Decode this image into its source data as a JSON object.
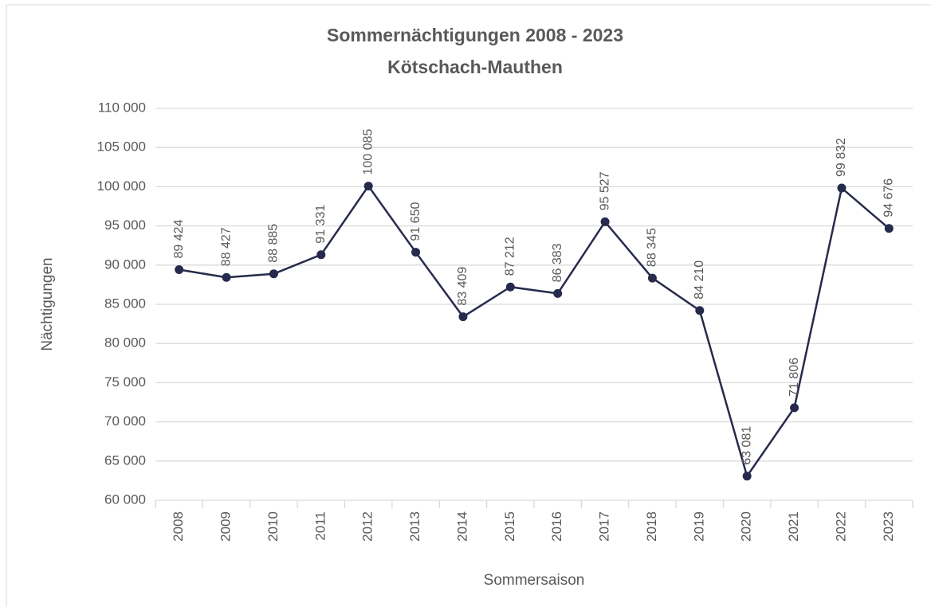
{
  "chart_data": {
    "type": "line",
    "title": "Sommernächtigungen 2008 - 2023",
    "subtitle": "Kötschach-Mauthen",
    "x_label": "Sommersaison",
    "y_label": "Nächtigungen",
    "categories": [
      "2008",
      "2009",
      "2010",
      "2011",
      "2012",
      "2013",
      "2014",
      "2015",
      "2016",
      "2017",
      "2018",
      "2019",
      "2020",
      "2021",
      "2022",
      "2023"
    ],
    "values": [
      89424,
      88427,
      88885,
      91331,
      100085,
      91650,
      83409,
      87212,
      86383,
      95527,
      88345,
      84210,
      63081,
      71806,
      99832,
      94676
    ],
    "value_labels": [
      "89 424",
      "88 427",
      "88 885",
      "91 331",
      "100 085",
      "91 650",
      "83 409",
      "87 212",
      "86 383",
      "95 527",
      "88 345",
      "84 210",
      "63 081",
      "71 806",
      "99 832",
      "94 676"
    ],
    "color": "#262b4d",
    "ylim": [
      60000,
      110000
    ],
    "yticks": [
      {
        "value": 60000,
        "label": "60 000"
      },
      {
        "value": 65000,
        "label": "65 000"
      },
      {
        "value": 70000,
        "label": "70 000"
      },
      {
        "value": 75000,
        "label": "75 000"
      },
      {
        "value": 80000,
        "label": "80 000"
      },
      {
        "value": 85000,
        "label": "85 000"
      },
      {
        "value": 90000,
        "label": "90 000"
      },
      {
        "value": 95000,
        "label": "95 000"
      },
      {
        "value": 100000,
        "label": "100 000"
      },
      {
        "value": 105000,
        "label": "105 000"
      },
      {
        "value": 110000,
        "label": "110 000"
      }
    ],
    "grid": true
  }
}
